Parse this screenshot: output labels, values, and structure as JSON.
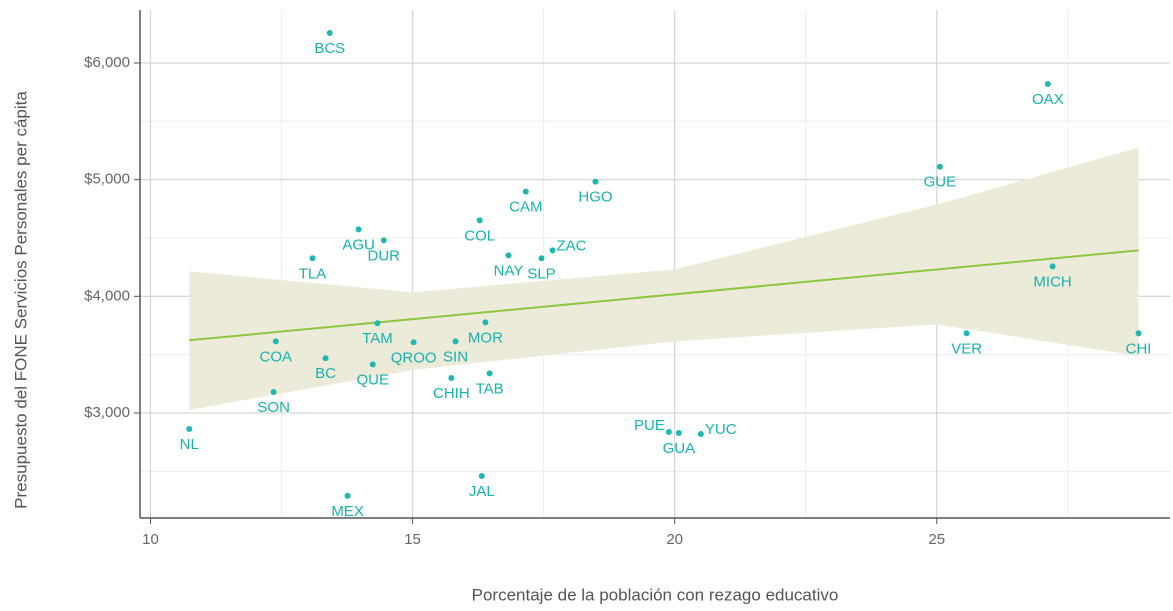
{
  "chart_data": {
    "type": "scatter",
    "xlabel": "Porcentaje de la población con rezago educativo",
    "ylabel": "Presupuesto del FONE Servicios Personales per cápita",
    "labels": [
      "BCS",
      "OAX",
      "GUE",
      "HGO",
      "CAM",
      "AGU",
      "COL",
      "DUR",
      "ZAC",
      "NAY",
      "SLP",
      "TLA",
      "MICH",
      "TAM",
      "MOR",
      "COA",
      "QROO",
      "SIN",
      "VER",
      "CHI",
      "BC",
      "QUE",
      "TAB",
      "CHIH",
      "SON",
      "NL",
      "PUE",
      "GUA",
      "YUC",
      "JAL",
      "MEX"
    ],
    "x": [
      13.42,
      27.12,
      25.06,
      18.49,
      17.16,
      13.97,
      16.28,
      14.45,
      17.67,
      16.83,
      17.46,
      13.09,
      27.21,
      14.33,
      16.39,
      12.39,
      15.02,
      15.82,
      25.57,
      28.85,
      13.34,
      14.24,
      16.47,
      15.74,
      12.35,
      10.74,
      19.89,
      20.08,
      20.5,
      16.32,
      13.76
    ],
    "values": [
      6257,
      5820,
      5111,
      4983,
      4897,
      4574,
      4651,
      4480,
      4394,
      4351,
      4326,
      4326,
      4257,
      3769,
      3777,
      3614,
      3606,
      3614,
      3683,
      3683,
      3469,
      3417,
      3340,
      3300,
      3180,
      2863,
      2837,
      2829,
      2820,
      2460,
      2290
    ],
    "color": "#1fb7b1",
    "trend": {
      "x": [
        10.74,
        28.85
      ],
      "values": [
        3623,
        4394
      ],
      "color": "#8dc63f"
    },
    "band": {
      "x": [
        10.74,
        15,
        20,
        25,
        28.85
      ],
      "lower": [
        3026,
        3369,
        3614,
        3760,
        3489
      ],
      "upper": [
        4214,
        4034,
        4231,
        4786,
        5274
      ],
      "color": "#ecebd9"
    },
    "xlim": [
      9.8,
      29.45
    ],
    "ylim": [
      2100,
      6454
    ],
    "xticks": [
      10,
      15,
      20,
      25
    ],
    "yticks": [
      {
        "value": 3000,
        "label": "$3,000"
      },
      {
        "value": 4000,
        "label": "$4,000"
      },
      {
        "value": 5000,
        "label": "$5,000"
      },
      {
        "value": 6000,
        "label": "$6,000"
      }
    ],
    "x_minor_grid": [
      12.5,
      17.5,
      22.5,
      27.5
    ],
    "y_minor_grid": [
      2500,
      3500,
      4500,
      5500,
      6500
    ],
    "grid": true
  }
}
